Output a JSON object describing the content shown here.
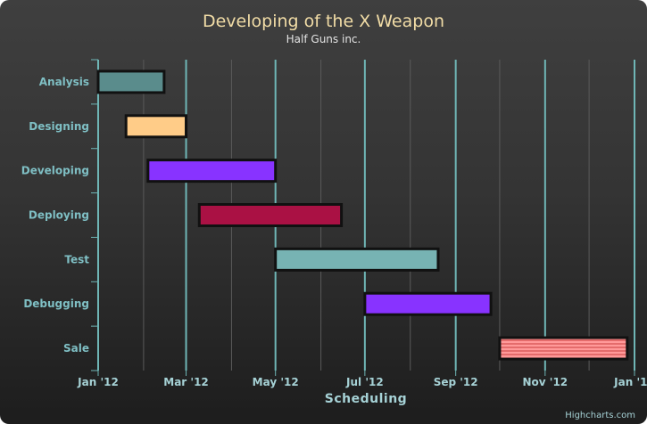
{
  "chart_data": {
    "type": "bar",
    "orientation": "horizontal",
    "title": "Developing of the X Weapon",
    "subtitle": "Half Guns inc.",
    "xlabel": "Scheduling",
    "ylabel": "",
    "x_is_date": true,
    "xlim": [
      "2012-01-01",
      "2013-01-01"
    ],
    "x_ticks": [
      {
        "date": "2012-01-01",
        "label": "Jan '12"
      },
      {
        "date": "2012-03-01",
        "label": "Mar '12"
      },
      {
        "date": "2012-05-01",
        "label": "May '12"
      },
      {
        "date": "2012-07-01",
        "label": "Jul '12"
      },
      {
        "date": "2012-09-01",
        "label": "Sep '12"
      },
      {
        "date": "2012-11-01",
        "label": "Nov '12"
      },
      {
        "date": "2013-01-01",
        "label": "Jan '13"
      }
    ],
    "grid": true,
    "legend": false,
    "tasks": [
      {
        "name": "Analysis",
        "start": "2012-01-01",
        "end": "2012-02-15",
        "color": "#5a8c8c"
      },
      {
        "name": "Designing",
        "start": "2012-01-20",
        "end": "2012-03-01",
        "color": "#ffcc88"
      },
      {
        "name": "Developing",
        "start": "2012-02-04",
        "end": "2012-05-01",
        "color": "#8833ff"
      },
      {
        "name": "Deploying",
        "start": "2012-03-10",
        "end": "2012-06-15",
        "color": "#aa1144"
      },
      {
        "name": "Test",
        "start": "2012-05-01",
        "end": "2012-08-20",
        "color": "#77b3b3"
      },
      {
        "name": "Debugging",
        "start": "2012-07-01",
        "end": "2012-09-25",
        "color": "#8833ff"
      },
      {
        "name": "Sale",
        "start": "2012-10-01",
        "end": "2012-12-27",
        "color": "#ff9999",
        "pattern": "hatched"
      }
    ]
  },
  "credits": "Highcharts.com"
}
